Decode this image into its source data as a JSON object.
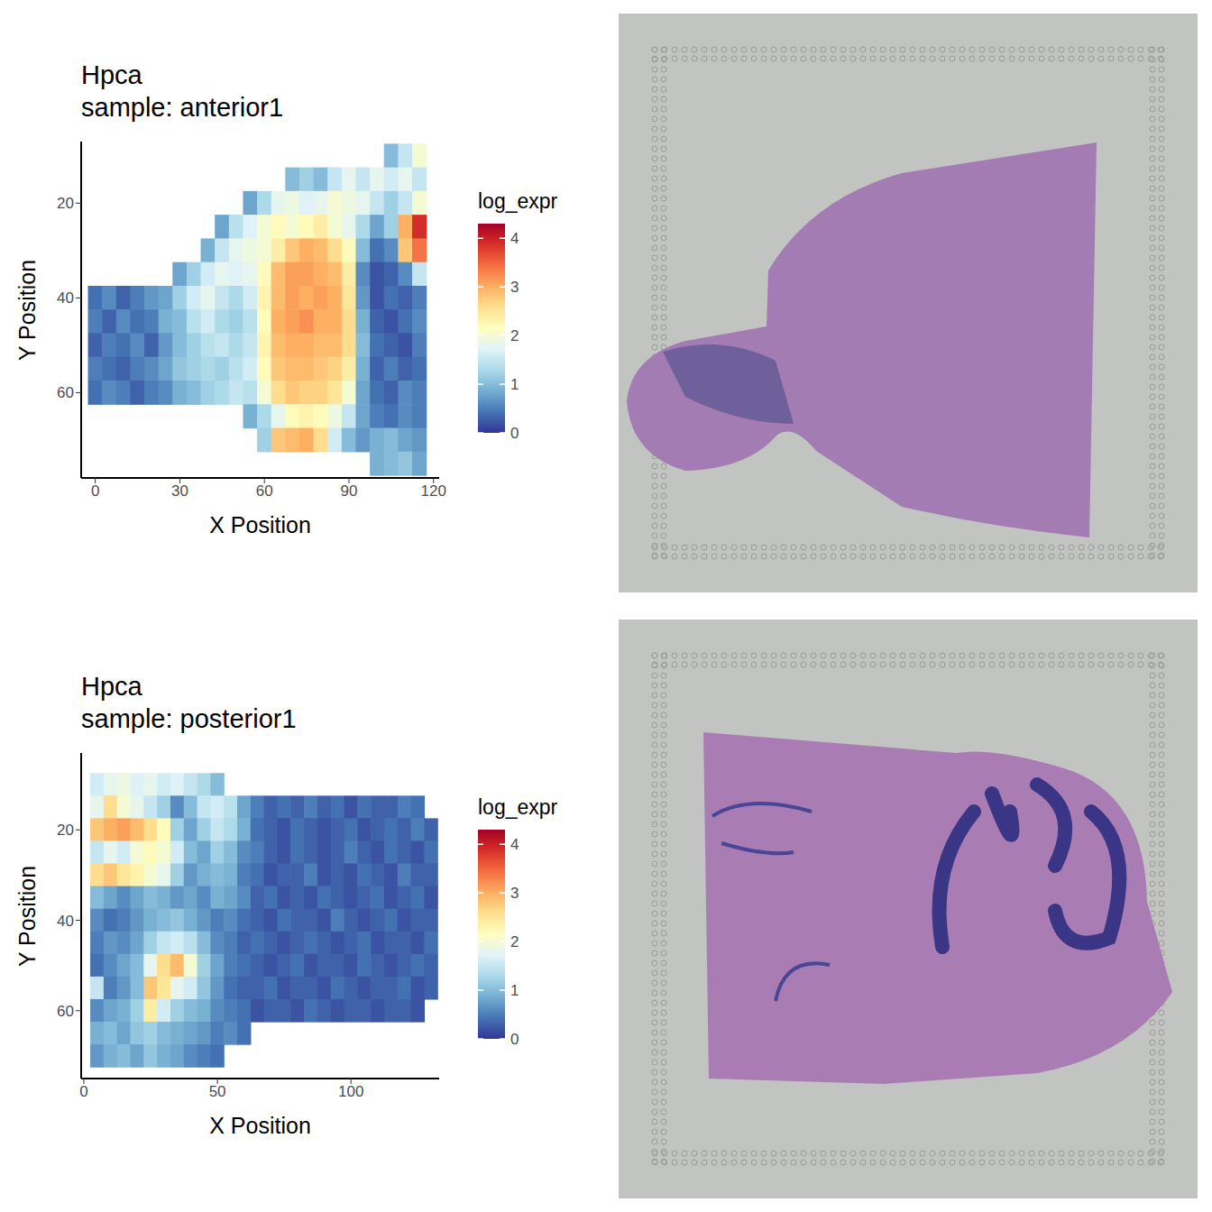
{
  "chart_data": [
    {
      "type": "heatmap",
      "title": "Hpca",
      "subtitle": "sample: anterior1",
      "x_label": "X Position",
      "y_label": "Y Position",
      "x": [
        0,
        5,
        10,
        15,
        20,
        25,
        30,
        35,
        40,
        45,
        50,
        55,
        60,
        65,
        70,
        75,
        80,
        85,
        90,
        95,
        100,
        105,
        110,
        115
      ],
      "y": [
        10,
        15,
        20,
        25,
        30,
        35,
        40,
        45,
        50,
        55,
        60,
        65,
        70,
        75
      ],
      "cells": [
        [
          null,
          null,
          null,
          null,
          null,
          null,
          null,
          null,
          null,
          null,
          null,
          null,
          null,
          null,
          null,
          null,
          null,
          null,
          null,
          null,
          null,
          1.0,
          1.5,
          2.0
        ],
        [
          null,
          null,
          null,
          null,
          null,
          null,
          null,
          null,
          null,
          null,
          null,
          null,
          null,
          null,
          1.0,
          1.2,
          1.0,
          1.5,
          1.8,
          1.5,
          1.8,
          1.6,
          1.8,
          1.5
        ],
        [
          null,
          null,
          null,
          null,
          null,
          null,
          null,
          null,
          null,
          null,
          null,
          0.8,
          1.3,
          1.8,
          1.9,
          1.7,
          1.8,
          2.0,
          1.9,
          1.8,
          1.5,
          1.2,
          1.5,
          2.0
        ],
        [
          null,
          null,
          null,
          null,
          null,
          null,
          null,
          null,
          null,
          0.8,
          1.4,
          1.7,
          2.0,
          2.2,
          2.0,
          2.2,
          2.4,
          2.0,
          1.8,
          1.3,
          0.8,
          1.2,
          3.0,
          3.9
        ],
        [
          null,
          null,
          null,
          null,
          null,
          null,
          null,
          null,
          0.9,
          1.5,
          1.8,
          1.9,
          2.0,
          2.4,
          2.8,
          3.0,
          2.9,
          2.6,
          2.2,
          1.0,
          0.4,
          0.6,
          2.8,
          3.4
        ],
        [
          null,
          null,
          null,
          null,
          null,
          null,
          0.8,
          1.2,
          1.6,
          1.8,
          1.7,
          1.8,
          2.2,
          2.9,
          3.1,
          3.1,
          3.0,
          2.9,
          2.4,
          0.6,
          0.2,
          0.3,
          0.6,
          1.5
        ],
        [
          0.4,
          0.6,
          0.3,
          0.5,
          0.7,
          0.8,
          1.2,
          1.6,
          1.8,
          1.5,
          1.3,
          1.6,
          2.3,
          2.9,
          3.1,
          3.0,
          3.1,
          3.0,
          2.5,
          0.7,
          0.2,
          0.4,
          0.3,
          0.5
        ],
        [
          0.5,
          0.3,
          0.6,
          0.4,
          0.5,
          0.9,
          1.0,
          1.4,
          1.6,
          1.3,
          1.2,
          1.4,
          2.2,
          3.0,
          3.1,
          3.2,
          3.0,
          3.0,
          2.6,
          0.9,
          0.3,
          0.2,
          0.4,
          0.6
        ],
        [
          0.3,
          0.5,
          0.4,
          0.6,
          0.3,
          0.7,
          1.0,
          1.2,
          1.4,
          1.5,
          1.3,
          1.5,
          2.3,
          2.9,
          3.0,
          3.0,
          2.9,
          2.9,
          2.6,
          1.0,
          0.4,
          0.3,
          0.2,
          0.5
        ],
        [
          0.5,
          0.4,
          0.3,
          0.5,
          0.6,
          0.8,
          1.1,
          1.2,
          1.3,
          1.2,
          1.4,
          1.6,
          2.2,
          2.8,
          2.9,
          2.9,
          2.8,
          2.7,
          2.4,
          0.9,
          0.3,
          0.5,
          0.3,
          0.4
        ],
        [
          0.4,
          0.6,
          0.5,
          0.3,
          0.5,
          0.6,
          0.9,
          1.0,
          1.2,
          1.3,
          1.5,
          1.4,
          2.0,
          2.6,
          2.8,
          2.7,
          2.7,
          2.5,
          2.0,
          0.8,
          0.4,
          0.3,
          0.6,
          0.5
        ],
        [
          null,
          null,
          null,
          null,
          null,
          null,
          null,
          null,
          null,
          null,
          null,
          0.9,
          1.3,
          1.8,
          2.2,
          2.3,
          2.2,
          1.9,
          1.5,
          0.8,
          0.5,
          0.4,
          0.6,
          0.5
        ],
        [
          null,
          null,
          null,
          null,
          null,
          null,
          null,
          null,
          null,
          null,
          null,
          null,
          1.2,
          2.8,
          2.9,
          3.0,
          2.6,
          1.6,
          1.0,
          0.7,
          0.9,
          1.0,
          0.8,
          0.7
        ],
        [
          null,
          null,
          null,
          null,
          null,
          null,
          null,
          null,
          null,
          null,
          null,
          null,
          null,
          null,
          null,
          null,
          null,
          null,
          null,
          null,
          0.9,
          1.0,
          1.1,
          0.8
        ]
      ],
      "xlim": [
        -5,
        122
      ],
      "xticks": [
        0,
        30,
        60,
        90,
        120
      ],
      "ylim": [
        78,
        7
      ],
      "yticks": [
        20,
        40,
        60
      ],
      "colorbar": {
        "title": "log_expr",
        "range": [
          0,
          4.3
        ],
        "ticks": [
          0,
          1,
          2,
          3,
          4
        ]
      }
    },
    {
      "type": "heatmap",
      "title": "Hpca",
      "subtitle": "sample: posterior1",
      "x_label": "X Position",
      "y_label": "Y Position",
      "x": [
        5,
        10,
        15,
        20,
        25,
        30,
        35,
        40,
        45,
        50,
        55,
        60,
        65,
        70,
        75,
        80,
        85,
        90,
        95,
        100,
        105,
        110,
        115,
        120,
        125,
        130
      ],
      "y": [
        10,
        15,
        20,
        25,
        30,
        35,
        40,
        45,
        50,
        55,
        60,
        65,
        70
      ],
      "cells": [
        [
          1.6,
          1.8,
          1.9,
          1.7,
          1.8,
          1.6,
          1.7,
          1.5,
          1.3,
          1.0,
          null,
          null,
          null,
          null,
          null,
          null,
          null,
          null,
          null,
          null,
          null,
          null,
          null,
          null,
          null,
          null
        ],
        [
          1.8,
          2.6,
          2.0,
          1.8,
          1.5,
          1.2,
          0.6,
          1.0,
          1.5,
          1.6,
          1.4,
          0.8,
          0.5,
          0.3,
          0.4,
          0.3,
          0.5,
          0.3,
          0.4,
          0.2,
          0.4,
          0.3,
          0.3,
          0.5,
          0.4,
          null
        ],
        [
          2.8,
          3.0,
          3.1,
          2.9,
          2.6,
          2.2,
          1.2,
          0.8,
          1.2,
          1.5,
          1.3,
          0.9,
          0.4,
          0.3,
          0.2,
          0.4,
          0.3,
          0.2,
          0.3,
          0.4,
          0.2,
          0.3,
          0.4,
          0.3,
          0.5,
          0.3
        ],
        [
          1.5,
          1.8,
          1.6,
          2.0,
          2.2,
          2.0,
          1.6,
          1.0,
          0.8,
          1.2,
          1.0,
          0.6,
          0.5,
          0.3,
          0.2,
          0.4,
          0.3,
          0.2,
          0.3,
          0.5,
          0.3,
          0.2,
          0.4,
          0.3,
          0.2,
          0.4
        ],
        [
          2.6,
          2.8,
          2.5,
          2.3,
          2.0,
          1.8,
          1.2,
          0.7,
          0.9,
          1.0,
          0.9,
          0.5,
          0.4,
          0.2,
          0.3,
          0.3,
          0.5,
          0.2,
          0.3,
          0.2,
          0.4,
          0.3,
          0.2,
          0.5,
          0.3,
          0.3
        ],
        [
          1.0,
          0.8,
          0.6,
          0.8,
          1.0,
          0.9,
          0.7,
          0.8,
          0.6,
          0.9,
          0.8,
          0.6,
          0.3,
          0.4,
          0.2,
          0.3,
          0.2,
          0.4,
          0.3,
          0.2,
          0.3,
          0.4,
          0.2,
          0.3,
          0.4,
          0.2
        ],
        [
          0.6,
          0.4,
          0.5,
          0.7,
          0.9,
          1.0,
          1.1,
          0.9,
          0.7,
          0.5,
          0.6,
          0.4,
          0.3,
          0.2,
          0.4,
          0.3,
          0.3,
          0.2,
          0.5,
          0.3,
          0.2,
          0.3,
          0.4,
          0.2,
          0.3,
          0.3
        ],
        [
          0.5,
          0.7,
          0.6,
          0.8,
          1.2,
          1.5,
          1.6,
          1.4,
          1.0,
          0.6,
          0.5,
          0.3,
          0.4,
          0.3,
          0.2,
          0.3,
          0.4,
          0.3,
          0.2,
          0.3,
          0.4,
          0.2,
          0.3,
          0.3,
          0.2,
          0.4
        ],
        [
          0.4,
          0.6,
          0.8,
          1.0,
          1.8,
          2.6,
          2.9,
          2.0,
          1.2,
          0.8,
          0.5,
          0.4,
          0.3,
          0.2,
          0.3,
          0.4,
          0.2,
          0.3,
          0.3,
          0.2,
          0.4,
          0.3,
          0.2,
          0.3,
          0.4,
          0.3
        ],
        [
          1.5,
          0.5,
          0.7,
          1.0,
          2.8,
          2.5,
          1.8,
          1.6,
          1.1,
          0.7,
          0.4,
          0.3,
          0.3,
          0.4,
          0.2,
          0.3,
          0.3,
          0.2,
          0.4,
          0.3,
          0.2,
          0.3,
          0.3,
          0.4,
          0.2,
          0.3
        ],
        [
          0.6,
          0.8,
          0.9,
          1.2,
          2.4,
          1.6,
          1.2,
          1.0,
          0.9,
          0.6,
          0.5,
          0.4,
          0.2,
          0.3,
          0.3,
          0.2,
          0.4,
          0.3,
          0.2,
          0.3,
          0.3,
          0.2,
          0.3,
          0.3,
          0.2,
          null
        ],
        [
          0.9,
          1.0,
          0.8,
          1.1,
          1.2,
          1.0,
          0.9,
          0.8,
          0.7,
          0.5,
          0.6,
          0.4,
          null,
          null,
          null,
          null,
          null,
          null,
          null,
          null,
          null,
          null,
          null,
          null,
          null,
          null
        ],
        [
          0.7,
          0.9,
          1.0,
          0.8,
          1.1,
          0.9,
          0.8,
          0.6,
          0.5,
          0.4,
          null,
          null,
          null,
          null,
          null,
          null,
          null,
          null,
          null,
          null,
          null,
          null,
          null,
          null,
          null,
          null
        ]
      ],
      "xlim": [
        -1,
        133
      ],
      "xticks": [
        0,
        50,
        100
      ],
      "ylim": [
        75,
        3
      ],
      "yticks": [
        20,
        40,
        60
      ],
      "colorbar": {
        "title": "log_expr",
        "range": [
          0,
          4.3
        ],
        "ticks": [
          0,
          1,
          2,
          3,
          4
        ]
      }
    }
  ]
}
